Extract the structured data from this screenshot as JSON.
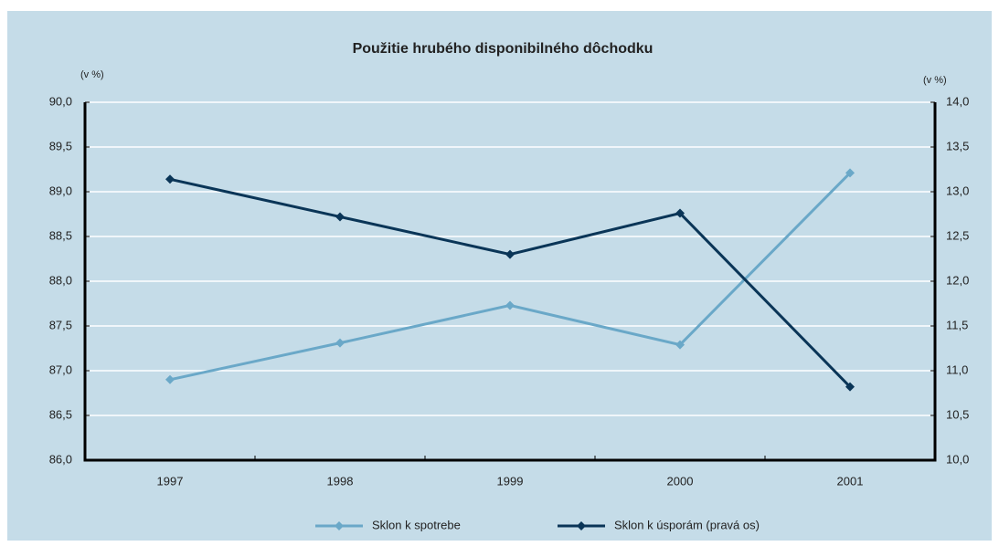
{
  "chart_data": {
    "type": "line",
    "title": "Použitie hrubého disponibilného dôchodku",
    "ylabel": "(v %)",
    "y2label": "(v %)",
    "categories": [
      "1997",
      "1998",
      "1999",
      "2000",
      "2001"
    ],
    "series": [
      {
        "name": "Sklon k spotrebe",
        "color": "#6aa8c8",
        "values": [
          86.9,
          87.31,
          87.73,
          87.29,
          89.21
        ]
      },
      {
        "name": "Sklon k úsporám (pravá os)",
        "color": "#0a3557",
        "axis": "y2",
        "values": [
          13.14,
          12.72,
          12.3,
          12.76,
          10.82
        ]
      }
    ],
    "ylim": [
      86,
      90
    ],
    "yticks": [
      {
        "value": 86,
        "label": "86,0"
      },
      {
        "value": 86.5,
        "label": "86,5"
      },
      {
        "value": 87,
        "label": "87,0"
      },
      {
        "value": 87.5,
        "label": "87,5"
      },
      {
        "value": 88,
        "label": "88,0"
      },
      {
        "value": 88.5,
        "label": "88,5"
      },
      {
        "value": 89,
        "label": "89,0"
      },
      {
        "value": 89.5,
        "label": "89,5"
      },
      {
        "value": 90,
        "label": "90,0"
      }
    ],
    "y2lim": [
      10,
      14
    ],
    "y2ticks": [
      {
        "value": 10,
        "label": "10,0"
      },
      {
        "value": 10.5,
        "label": "10,5"
      },
      {
        "value": 11,
        "label": "11,0"
      },
      {
        "value": 11.5,
        "label": "11,5"
      },
      {
        "value": 12,
        "label": "12,0"
      },
      {
        "value": 12.5,
        "label": "12,5"
      },
      {
        "value": 13,
        "label": "13,0"
      },
      {
        "value": 13.5,
        "label": "13,5"
      },
      {
        "value": 14,
        "label": "14,0"
      }
    ],
    "grid": true,
    "legend": "bottom"
  }
}
